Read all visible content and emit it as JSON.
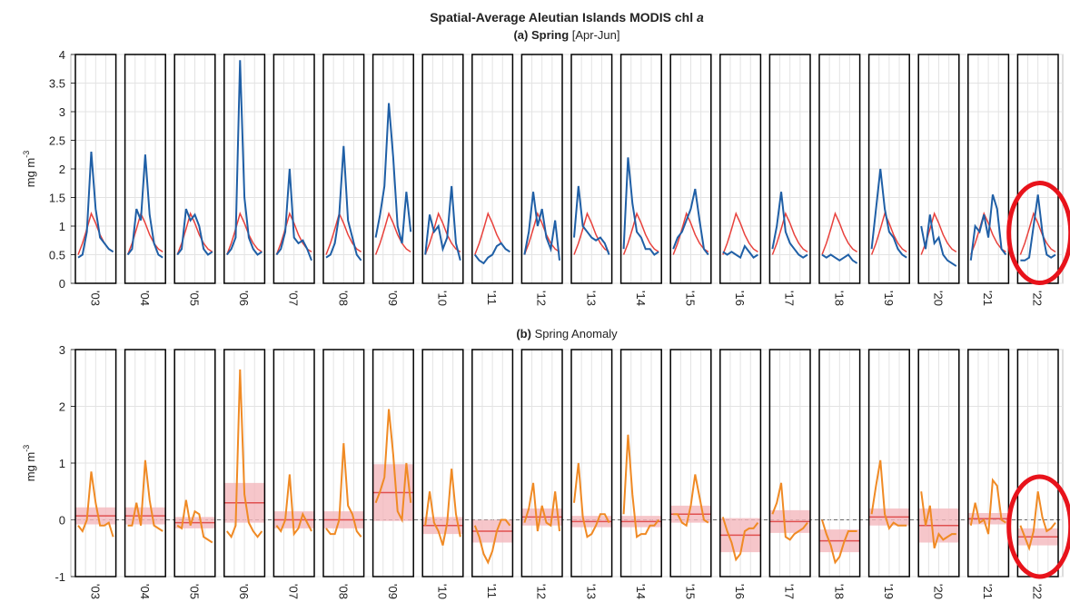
{
  "chart_data": [
    {
      "type": "line",
      "title": "Spatial-Average Aleutian Islands MODIS chl",
      "title_italic": "a",
      "subtitle_bold": "(a) Spring",
      "subtitle_rest": "[Apr-Jun]",
      "y_label": "mg m",
      "y_label_sup": "-3",
      "categories": [
        "'03",
        "'04",
        "'05",
        "'06",
        "'07",
        "'08",
        "'09",
        "'10",
        "'11",
        "'12",
        "'13",
        "'14",
        "'15",
        "'16",
        "'17",
        "'18",
        "'19",
        "'20",
        "'21",
        "'22"
      ],
      "ylim": [
        0,
        4
      ],
      "yticks": [
        0,
        0.5,
        1,
        1.5,
        2,
        2.5,
        3,
        3.5,
        4
      ],
      "grid": true,
      "series": [
        {
          "color": "#1f5fa6",
          "values": [
            [
              0.45,
              0.5,
              0.9,
              2.3,
              1.3,
              0.8,
              0.7,
              0.6,
              0.55
            ],
            [
              0.5,
              0.6,
              1.3,
              1.1,
              2.25,
              1.2,
              0.7,
              0.5,
              0.45
            ],
            [
              0.5,
              0.6,
              1.3,
              1.1,
              1.2,
              1.0,
              0.6,
              0.5,
              0.55
            ],
            [
              0.5,
              0.6,
              0.8,
              3.9,
              1.5,
              0.8,
              0.6,
              0.5,
              0.55
            ],
            [
              0.5,
              0.6,
              0.9,
              2.0,
              0.8,
              0.7,
              0.75,
              0.6,
              0.4
            ],
            [
              0.45,
              0.5,
              0.7,
              1.2,
              2.4,
              1.1,
              0.8,
              0.5,
              0.4
            ],
            [
              0.8,
              1.2,
              1.7,
              3.15,
              2.2,
              1.0,
              0.7,
              1.6,
              0.9
            ],
            [
              0.5,
              1.2,
              0.9,
              1.0,
              0.6,
              0.8,
              1.7,
              0.7,
              0.4
            ],
            [
              0.5,
              0.4,
              0.35,
              0.45,
              0.5,
              0.65,
              0.7,
              0.6,
              0.55
            ],
            [
              0.5,
              0.9,
              1.6,
              1.0,
              1.3,
              0.8,
              0.6,
              1.1,
              0.4
            ],
            [
              0.8,
              1.7,
              1.0,
              0.9,
              0.8,
              0.75,
              0.8,
              0.7,
              0.5
            ],
            [
              0.6,
              2.2,
              1.4,
              0.9,
              0.8,
              0.6,
              0.6,
              0.5,
              0.55
            ],
            [
              0.6,
              0.8,
              0.9,
              1.1,
              1.3,
              1.65,
              1.1,
              0.6,
              0.5
            ],
            [
              0.55,
              0.5,
              0.55,
              0.5,
              0.45,
              0.65,
              0.55,
              0.45,
              0.5
            ],
            [
              0.6,
              1.0,
              1.6,
              0.9,
              0.7,
              0.6,
              0.5,
              0.45,
              0.5
            ],
            [
              0.5,
              0.45,
              0.5,
              0.45,
              0.4,
              0.45,
              0.5,
              0.4,
              0.35
            ],
            [
              0.6,
              1.3,
              2.0,
              1.3,
              0.9,
              0.8,
              0.6,
              0.5,
              0.45
            ],
            [
              1.0,
              0.6,
              1.2,
              0.7,
              0.8,
              0.5,
              0.4,
              0.35,
              0.3
            ],
            [
              0.4,
              1.0,
              0.9,
              1.2,
              0.8,
              1.55,
              1.3,
              0.6,
              0.5
            ],
            [
              0.4,
              0.4,
              0.45,
              1.0,
              1.55,
              0.9,
              0.5,
              0.45,
              0.5
            ]
          ]
        }
      ],
      "climatology": {
        "color": "#e8413c",
        "values": [
          0.5,
          0.7,
          0.95,
          1.22,
          1.05,
          0.85,
          0.7,
          0.6,
          0.55
        ]
      }
    },
    {
      "type": "line",
      "subtitle_bold": "(b)",
      "subtitle_rest": "Spring Anomaly",
      "y_label": "mg m",
      "y_label_sup": "-3",
      "categories": [
        "'03",
        "'04",
        "'05",
        "'06",
        "'07",
        "'08",
        "'09",
        "'10",
        "'11",
        "'12",
        "'13",
        "'14",
        "'15",
        "'16",
        "'17",
        "'18",
        "'19",
        "'20",
        "'21",
        "'22"
      ],
      "ylim": [
        -1,
        3
      ],
      "yticks": [
        -1,
        0,
        1,
        2,
        3
      ],
      "grid": true,
      "reference_line": 0,
      "series": [
        {
          "color": "#f08a24",
          "values": [
            [
              -0.1,
              -0.2,
              0.0,
              0.85,
              0.3,
              -0.1,
              -0.1,
              -0.05,
              -0.3
            ],
            [
              -0.1,
              -0.1,
              0.3,
              -0.1,
              1.05,
              0.35,
              -0.1,
              -0.15,
              -0.2
            ],
            [
              -0.1,
              -0.15,
              0.35,
              -0.1,
              0.15,
              0.1,
              -0.3,
              -0.35,
              -0.4
            ],
            [
              -0.2,
              -0.3,
              -0.1,
              2.65,
              0.45,
              -0.05,
              -0.2,
              -0.3,
              -0.2
            ],
            [
              -0.1,
              -0.2,
              0.0,
              0.8,
              -0.25,
              -0.15,
              0.1,
              -0.05,
              -0.2
            ],
            [
              -0.15,
              -0.25,
              -0.25,
              0.0,
              1.35,
              0.25,
              0.1,
              -0.2,
              -0.3
            ],
            [
              0.3,
              0.5,
              0.75,
              1.95,
              1.15,
              0.15,
              0.0,
              1.0,
              0.3
            ],
            [
              -0.1,
              0.5,
              -0.05,
              -0.2,
              -0.45,
              -0.05,
              0.9,
              0.1,
              -0.3
            ],
            [
              -0.1,
              -0.3,
              -0.6,
              -0.75,
              -0.55,
              -0.2,
              0.0,
              0.0,
              -0.1
            ],
            [
              -0.05,
              0.2,
              0.65,
              -0.2,
              0.25,
              -0.05,
              -0.1,
              0.5,
              -0.2
            ],
            [
              0.3,
              1.0,
              0.05,
              -0.3,
              -0.25,
              -0.1,
              0.1,
              0.1,
              -0.05
            ],
            [
              0.1,
              1.5,
              0.45,
              -0.3,
              -0.25,
              -0.25,
              -0.1,
              -0.1,
              0.0
            ],
            [
              0.1,
              0.1,
              -0.05,
              -0.1,
              0.25,
              0.8,
              0.4,
              0.0,
              -0.05
            ],
            [
              0.05,
              -0.2,
              -0.4,
              -0.7,
              -0.6,
              -0.2,
              -0.15,
              -0.15,
              -0.05
            ],
            [
              0.1,
              0.3,
              0.65,
              -0.3,
              -0.35,
              -0.25,
              -0.2,
              -0.15,
              -0.05
            ],
            [
              0.0,
              -0.25,
              -0.45,
              -0.75,
              -0.65,
              -0.4,
              -0.2,
              -0.2,
              -0.2
            ],
            [
              0.1,
              0.6,
              1.05,
              0.1,
              -0.15,
              -0.05,
              -0.1,
              -0.1,
              -0.1
            ],
            [
              0.5,
              -0.1,
              0.25,
              -0.5,
              -0.25,
              -0.35,
              -0.3,
              -0.25,
              -0.25
            ],
            [
              -0.1,
              0.3,
              -0.05,
              0.0,
              -0.25,
              0.7,
              0.6,
              0.0,
              -0.05
            ],
            [
              -0.1,
              -0.3,
              -0.5,
              -0.2,
              0.5,
              0.05,
              -0.2,
              -0.15,
              -0.05
            ]
          ]
        }
      ],
      "annual_mean": {
        "color": "#e05050",
        "band_color": "#f4b8bd",
        "values": [
          0.07,
          0.07,
          -0.05,
          0.3,
          0.0,
          0.0,
          0.48,
          -0.1,
          -0.2,
          0.05,
          -0.03,
          -0.03,
          0.1,
          -0.27,
          -0.03,
          -0.37,
          0.05,
          -0.1,
          0.02,
          -0.3
        ],
        "spread": [
          0.15,
          0.15,
          0.1,
          0.35,
          0.15,
          0.15,
          0.5,
          0.15,
          0.2,
          0.15,
          0.1,
          0.1,
          0.15,
          0.3,
          0.2,
          0.2,
          0.15,
          0.3,
          0.1,
          0.15
        ]
      }
    }
  ]
}
